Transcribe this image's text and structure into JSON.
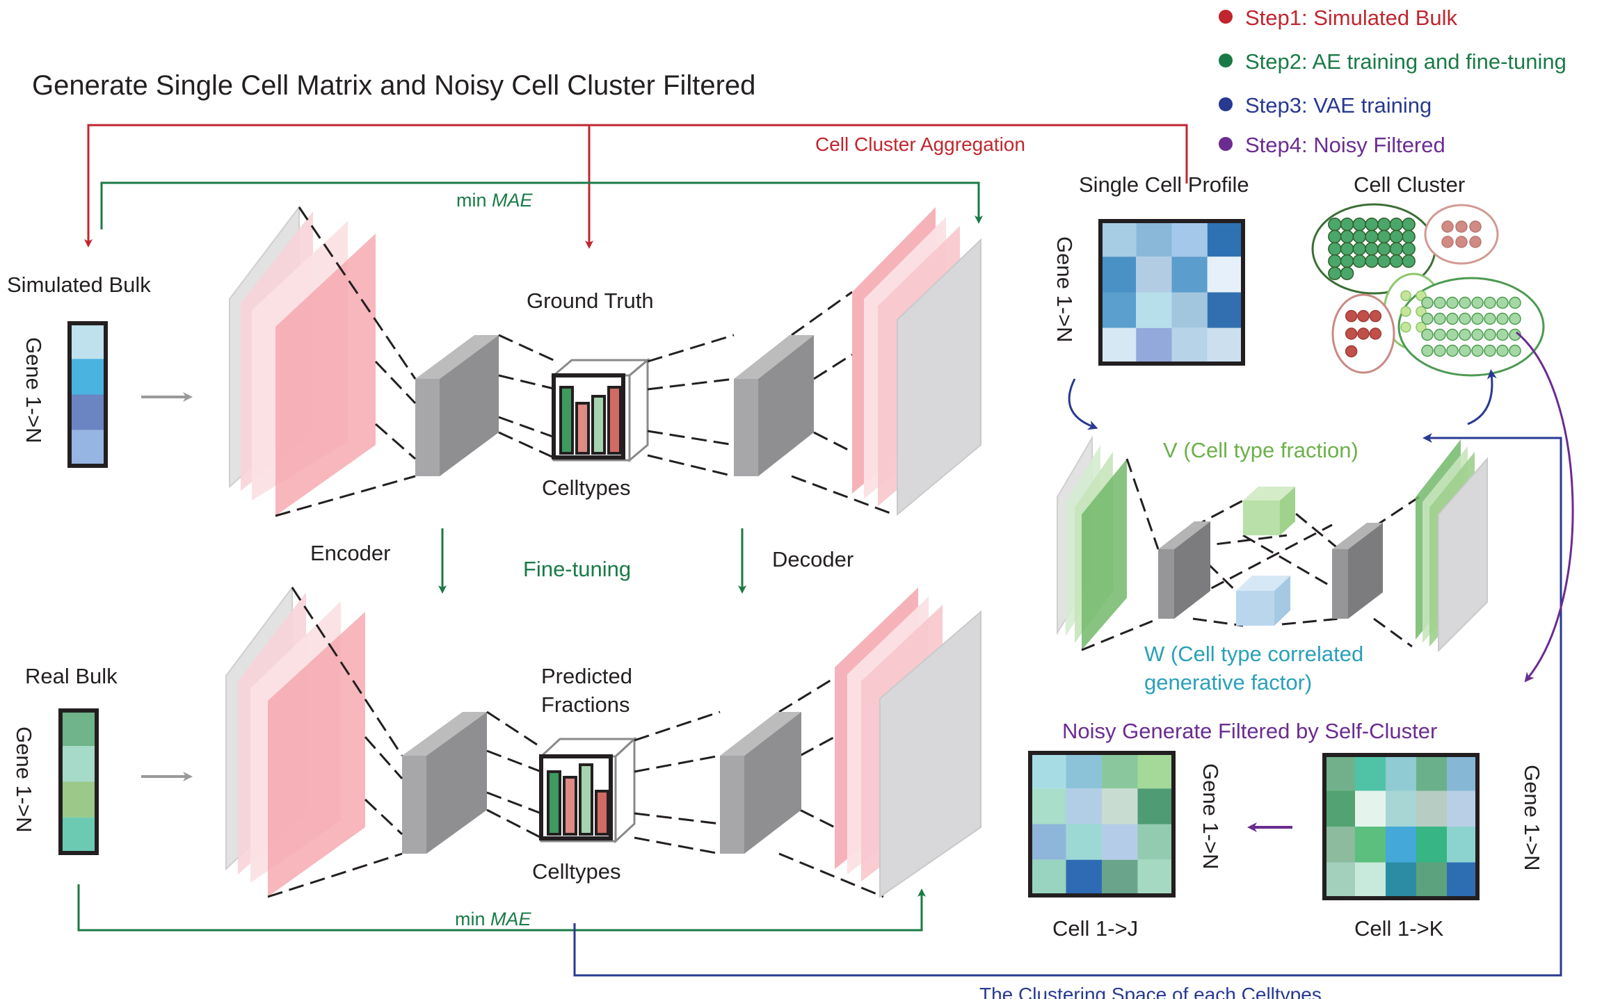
{
  "title": "Generate Single Cell Matrix and Noisy Cell Cluster Filtered",
  "legend": [
    {
      "label": "Step1: Simulated Bulk",
      "color": "#c0262e"
    },
    {
      "label": "Step2: AE training and fine-tuning",
      "color": "#1a7a46"
    },
    {
      "label": "Step3: VAE training",
      "color": "#283990"
    },
    {
      "label": "Step4: Noisy Filtered",
      "color": "#6a2c91"
    }
  ],
  "colors": {
    "red": "#c0262e",
    "green": "#1a7a46",
    "blue": "#283990",
    "purple": "#6a2c91",
    "light_green_text": "#6cb04a",
    "teal_text": "#2aa0b8",
    "pink_layer": "#f4a0a8",
    "gray_layer": "#a0a0a2"
  },
  "labels": {
    "cell_cluster_aggregation": "Cell Cluster Aggregation",
    "min_mae_top_prefix": "min",
    "min_mae_top_italic": "MAE",
    "min_mae_bottom_prefix": "min",
    "min_mae_bottom_italic": "MAE",
    "simulated_bulk": "Simulated Bulk",
    "real_bulk": "Real Bulk",
    "gene_axis_sim": "Gene 1->N",
    "gene_axis_real": "Gene 1->N",
    "ground_truth": "Ground Truth",
    "celltypes_top": "Celltypes",
    "encoder": "Encoder",
    "fine_tuning": "Fine-tuning",
    "decoder": "Decoder",
    "predicted_line1": "Predicted",
    "predicted_line2": "Fractions",
    "celltypes_bottom": "Celltypes",
    "single_cell_profile": "Single Cell Profile",
    "cell_cluster": "Cell Cluster",
    "gene_axis_profile": "Gene 1->N",
    "v_label": "V (Cell type fraction)",
    "w_label_line1": "W (Cell type correlated",
    "w_label_line2": "generative factor)",
    "noisy_title": "Noisy Generate Filtered by Self-Cluster",
    "gene_axis_j": "Gene 1->N",
    "gene_axis_k": "Gene 1->N",
    "cell_j": "Cell 1->J",
    "cell_k": "Cell 1->K",
    "clustering_space": "The Clustering Space of each Celltypes"
  },
  "matrices": {
    "simulated_bulk": [
      "#bfe1ed",
      "#4ab3e0",
      "#6a85c1",
      "#97b5e3"
    ],
    "real_bulk": [
      "#6fb48a",
      "#a7dbc9",
      "#9ac988",
      "#6ccab3"
    ],
    "single_cell_profile": [
      [
        "#a6cde4",
        "#8ab8d8",
        "#a3c8ea",
        "#2e72b3"
      ],
      [
        "#4a91c6",
        "#b2cde3",
        "#5b9dcc",
        "#e6f0fa"
      ],
      [
        "#5b9fcf",
        "#b7dfeb",
        "#a2c6de",
        "#316fb0"
      ],
      [
        "#d6e8f3",
        "#93a9db",
        "#b6d3e7",
        "#cbdfee"
      ]
    ],
    "cell_j": [
      [
        "#a7dce5",
        "#8cc3d8",
        "#8ac79c",
        "#a4d99a"
      ],
      [
        "#a8deca",
        "#b2cde6",
        "#c8dcd2",
        "#4f9b73"
      ],
      [
        "#8eb6db",
        "#9cd9d5",
        "#b4cce8",
        "#93cbb0"
      ],
      [
        "#98d4bf",
        "#2f6bb5",
        "#6aa58b",
        "#a6d9c1"
      ]
    ],
    "cell_k": [
      [
        "#72b08c",
        "#50c3a6",
        "#90cbd3",
        "#6ab08a",
        "#86b8d6"
      ],
      [
        "#53a372",
        "#e4f4ed",
        "#a7d6d5",
        "#b7ccc2",
        "#b9cfe6"
      ],
      [
        "#8cbb9e",
        "#5cbf7e",
        "#44a8d8",
        "#37b584",
        "#8cd3d0"
      ],
      [
        "#a3cfbd",
        "#c7eadc",
        "#2b8ca3",
        "#5da27e",
        "#2d6eb3"
      ]
    ]
  },
  "bar_charts": {
    "ground_truth": [
      {
        "value": 0.95,
        "color": "#3e9a5f"
      },
      {
        "value": 0.72,
        "color": "#de8a85"
      },
      {
        "value": 0.82,
        "color": "#a6d3b0"
      },
      {
        "value": 0.95,
        "color": "#cf6a64"
      }
    ],
    "predicted": [
      {
        "value": 0.9,
        "color": "#3e9a5f"
      },
      {
        "value": 0.82,
        "color": "#de8a85"
      },
      {
        "value": 1.0,
        "color": "#a6d3b0"
      },
      {
        "value": 0.62,
        "color": "#cf6a64"
      }
    ]
  },
  "clusters": {
    "dark_green_cluster": {
      "cells": 30,
      "fill": "#4aa66a",
      "outline": "#3b6e34"
    },
    "pink_cluster": {
      "cells": 6,
      "fill": "#cf8b84",
      "outline": "#cf8b84"
    },
    "light_green_cluster": {
      "cells": 6,
      "fill": "#c5e59a",
      "outline": "#8cc66b"
    },
    "large_cluster": {
      "cells": 32,
      "fill": "#a5d8a4",
      "outline": "#4c9a52"
    },
    "red_cluster": {
      "cells": 7,
      "fill": "#c0504a",
      "outline": "#c0504a"
    }
  }
}
